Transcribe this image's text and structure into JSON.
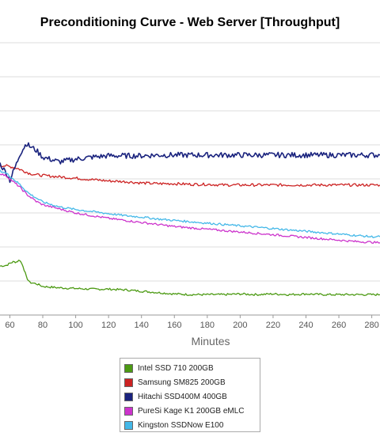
{
  "chart_data": {
    "type": "line",
    "title": "Preconditioning Curve - Web Server [Throughput]",
    "xlabel": "Minutes",
    "ylabel": "",
    "xlim": [
      54,
      285
    ],
    "ylim": [
      0,
      400
    ],
    "xticks": [
      60,
      80,
      100,
      120,
      140,
      160,
      180,
      200,
      220,
      240,
      260,
      280
    ],
    "grid": true,
    "legend_position": "bottom",
    "series": [
      {
        "name": "Intel SSD 710 200GB",
        "color": "#4c9a13",
        "x": [
          54,
          58,
          60,
          62,
          64,
          66,
          68,
          70,
          72,
          76,
          80,
          90,
          100,
          110,
          120,
          130,
          140,
          150,
          160,
          170,
          180,
          190,
          200,
          210,
          220,
          230,
          240,
          250,
          260,
          270,
          280,
          285
        ],
        "y": [
          72,
          73,
          76,
          78,
          78,
          81,
          72,
          56,
          48,
          46,
          42,
          40,
          39,
          38,
          38,
          37,
          35,
          33,
          31,
          30,
          30,
          30,
          31,
          30,
          31,
          30,
          31,
          30,
          30,
          30,
          30,
          30
        ]
      },
      {
        "name": "Samsung SM825 200GB",
        "color": "#cc2222",
        "x": [
          54,
          58,
          60,
          62,
          64,
          66,
          68,
          70,
          72,
          76,
          80,
          90,
          100,
          110,
          120,
          130,
          140,
          150,
          160,
          170,
          180,
          190,
          200,
          210,
          220,
          230,
          240,
          250,
          260,
          270,
          280,
          285
        ],
        "y": [
          220,
          219,
          218,
          217,
          216,
          214,
          212,
          210,
          208,
          206,
          205,
          203,
          201,
          199,
          197,
          196,
          194,
          193,
          193,
          192,
          192,
          191,
          191,
          191,
          191,
          191,
          191,
          191,
          191,
          191,
          191,
          191
        ]
      },
      {
        "name": "Hitachi SSD400M 400GB",
        "color": "#1a237e",
        "x": [
          54,
          58,
          60,
          62,
          64,
          66,
          68,
          70,
          72,
          76,
          80,
          90,
          100,
          110,
          120,
          130,
          140,
          150,
          160,
          170,
          180,
          190,
          200,
          210,
          220,
          230,
          240,
          250,
          260,
          270,
          280,
          285
        ],
        "y": [
          222,
          208,
          198,
          210,
          222,
          236,
          244,
          252,
          248,
          242,
          232,
          225,
          229,
          232,
          234,
          234,
          234,
          235,
          235,
          235,
          235,
          235,
          235,
          235,
          235,
          235,
          235,
          235,
          235,
          235,
          235,
          235
        ]
      },
      {
        "name": "PureSi Kage K1 200GB eMLC",
        "color": "#cc33cc",
        "x": [
          54,
          58,
          60,
          62,
          64,
          66,
          68,
          70,
          72,
          76,
          80,
          90,
          100,
          110,
          120,
          130,
          140,
          150,
          160,
          170,
          180,
          190,
          200,
          210,
          220,
          230,
          240,
          250,
          260,
          270,
          280,
          285
        ],
        "y": [
          208,
          204,
          200,
          196,
          192,
          188,
          183,
          178,
          174,
          167,
          162,
          156,
          150,
          146,
          142,
          139,
          136,
          133,
          130,
          128,
          126,
          124,
          122,
          120,
          118,
          116,
          114,
          112,
          110,
          108,
          107,
          106
        ]
      },
      {
        "name": "Kingston SSDNow E100",
        "color": "#44b8e8",
        "x": [
          54,
          58,
          60,
          62,
          64,
          66,
          68,
          70,
          72,
          76,
          80,
          90,
          100,
          110,
          120,
          130,
          140,
          150,
          160,
          170,
          180,
          190,
          200,
          210,
          220,
          230,
          240,
          250,
          260,
          270,
          280,
          285
        ],
        "y": [
          212,
          208,
          204,
          200,
          196,
          192,
          187,
          182,
          178,
          172,
          166,
          159,
          155,
          152,
          149,
          146,
          144,
          141,
          139,
          137,
          135,
          133,
          131,
          129,
          127,
          125,
          123,
          121,
          119,
          117,
          115,
          115
        ]
      }
    ]
  }
}
